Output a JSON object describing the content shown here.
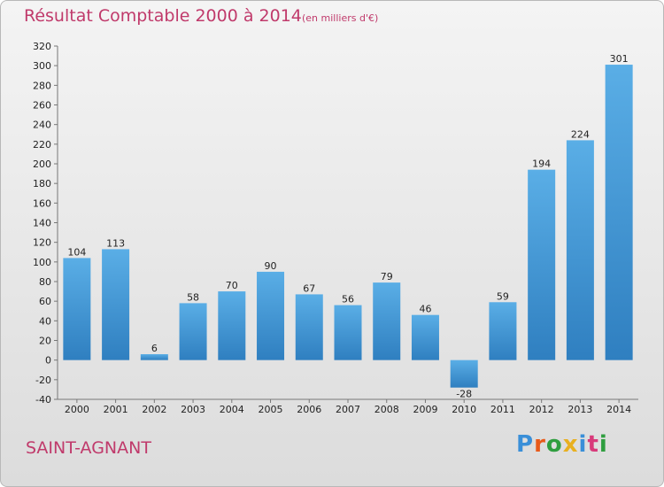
{
  "header": {
    "title": "Résultat Comptable 2000 à 2014",
    "subtitle": "(en milliers d'€)"
  },
  "footer": {
    "commune": "SAINT-AGNANT",
    "logo_text": "Proxiti"
  },
  "colors": {
    "title": "#c03a6b",
    "bar_light": "#5aaee6",
    "bar_dark": "#2f7fc0",
    "logo": [
      "#3a8fd8",
      "#e85a1a",
      "#2f9e3f",
      "#e8b020",
      "#3a8fd8",
      "#d83a7a",
      "#2f9e3f"
    ]
  },
  "chart_data": {
    "type": "bar",
    "title": "Résultat Comptable 2000 à 2014",
    "subtitle": "(en milliers d'€)",
    "categories": [
      "2000",
      "2001",
      "2002",
      "2003",
      "2004",
      "2005",
      "2006",
      "2007",
      "2008",
      "2009",
      "2010",
      "2011",
      "2012",
      "2013",
      "2014"
    ],
    "values": [
      104,
      113,
      6,
      58,
      70,
      90,
      67,
      56,
      79,
      46,
      -28,
      59,
      194,
      224,
      301
    ],
    "ylim": [
      -40,
      320
    ],
    "yticks": [
      -40,
      -20,
      0,
      20,
      40,
      60,
      80,
      100,
      120,
      140,
      160,
      180,
      200,
      220,
      240,
      260,
      280,
      300,
      320
    ],
    "grid": false,
    "xlabel": "",
    "ylabel": ""
  }
}
